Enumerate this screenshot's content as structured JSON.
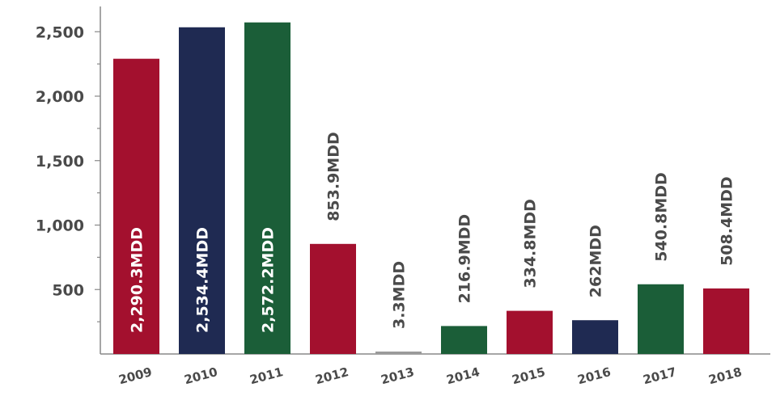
{
  "chart_data": {
    "type": "bar",
    "title": "",
    "xlabel": "",
    "ylabel": "",
    "categories": [
      "2009",
      "2010",
      "2011",
      "2012",
      "2013",
      "2014",
      "2015",
      "2016",
      "2017",
      "2018"
    ],
    "values": [
      2290.3,
      2534.4,
      2572.2,
      853.9,
      3.3,
      216.9,
      334.8,
      262,
      540.8,
      508.4
    ],
    "data_labels": [
      "2,290.3MDD",
      "2,534.4MDD",
      "2,572.2MDD",
      "853.9MDD",
      "3.3MDD",
      "216.9MDD",
      "334.8MDD",
      "262MDD",
      "540.8MDD",
      "508.4MDD"
    ],
    "bar_colors": [
      "#a3102e",
      "#1f2a52",
      "#1b5e38",
      "#a3102e",
      "#9a9a9a",
      "#1b5e38",
      "#a3102e",
      "#1f2a52",
      "#1b5e38",
      "#a3102e"
    ],
    "label_position": [
      "inside",
      "inside",
      "inside",
      "above",
      "above",
      "above",
      "above",
      "above",
      "above",
      "above"
    ],
    "y_ticks": [
      500,
      1000,
      1500,
      2000,
      2500
    ],
    "y_tick_labels": [
      "500",
      "1,000",
      "1,500",
      "2,000",
      "2,500"
    ],
    "ylim": [
      0,
      2750
    ],
    "grid": false,
    "legend": "none"
  }
}
